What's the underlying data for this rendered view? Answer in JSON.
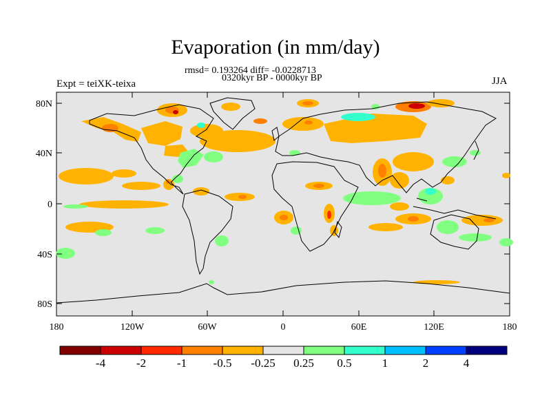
{
  "title": "Evaporation (in mm/day)",
  "stats_line": "rmsd= 0.193264 diff= -0.0228713",
  "period_line": "0320kyr BP - 0000kyr BP",
  "left_label": "Expt = teiXK-teixa",
  "right_label": "JJA",
  "map": {
    "lat_ticks": [
      "80N",
      "40N",
      "0",
      "40S",
      "80S"
    ],
    "lon_ticks": [
      "180",
      "120W",
      "60W",
      "0",
      "60E",
      "120E",
      "180"
    ],
    "background_color": "#e5e5e5"
  },
  "colorbar": {
    "colors": [
      "#800000",
      "#cc0000",
      "#ff2a00",
      "#ff7f00",
      "#ffb300",
      "#e5e5e5",
      "#80ff80",
      "#33ffcc",
      "#00bfff",
      "#0040ff",
      "#00007f"
    ],
    "labels": [
      "-4",
      "-2",
      "-1",
      "-0.5",
      "-0.25",
      "0.25",
      "0.5",
      "1",
      "2",
      "4"
    ]
  }
}
